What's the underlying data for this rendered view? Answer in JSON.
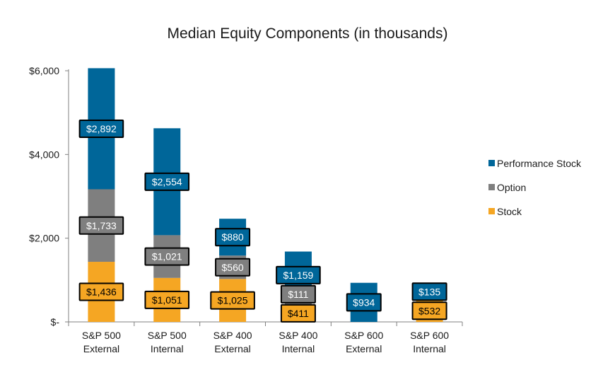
{
  "chart_data": {
    "type": "bar",
    "stacked": true,
    "title": "Median Equity Components (in thousands)",
    "xlabel": "",
    "ylabel": "",
    "ylim": [
      0,
      6000
    ],
    "yticks": [
      {
        "value": 0,
        "label": "$-"
      },
      {
        "value": 2000,
        "label": "$2,000"
      },
      {
        "value": 4000,
        "label": "$4,000"
      },
      {
        "value": 6000,
        "label": "$6,000"
      }
    ],
    "grid": false,
    "legend_position": "right",
    "categories": [
      [
        "S&P 500",
        "External"
      ],
      [
        "S&P 500",
        "Internal"
      ],
      [
        "S&P 400",
        "External"
      ],
      [
        "S&P 400",
        "Internal"
      ],
      [
        "S&P 600",
        "External"
      ],
      [
        "S&P 600",
        "Internal"
      ]
    ],
    "series": [
      {
        "name": "Stock",
        "color": "#F5A623",
        "values": [
          1436,
          1051,
          1025,
          411,
          0,
          532
        ],
        "labels": [
          "$1,436",
          "$1,051",
          "$1,025",
          "$411",
          "",
          "$532"
        ]
      },
      {
        "name": "Option",
        "color": "#7F7F7F",
        "values": [
          1733,
          1021,
          560,
          111,
          0,
          0
        ],
        "labels": [
          "$1,733",
          "$1,021",
          "$560",
          "$111",
          "",
          ""
        ]
      },
      {
        "name": "Performance Stock",
        "color": "#006699",
        "values": [
          2892,
          2554,
          880,
          1159,
          934,
          135
        ],
        "labels": [
          "$2,892",
          "$2,554",
          "$880",
          "$1,159",
          "$934",
          "$135"
        ]
      }
    ],
    "legend_order": [
      "Performance Stock",
      "Option",
      "Stock"
    ]
  }
}
